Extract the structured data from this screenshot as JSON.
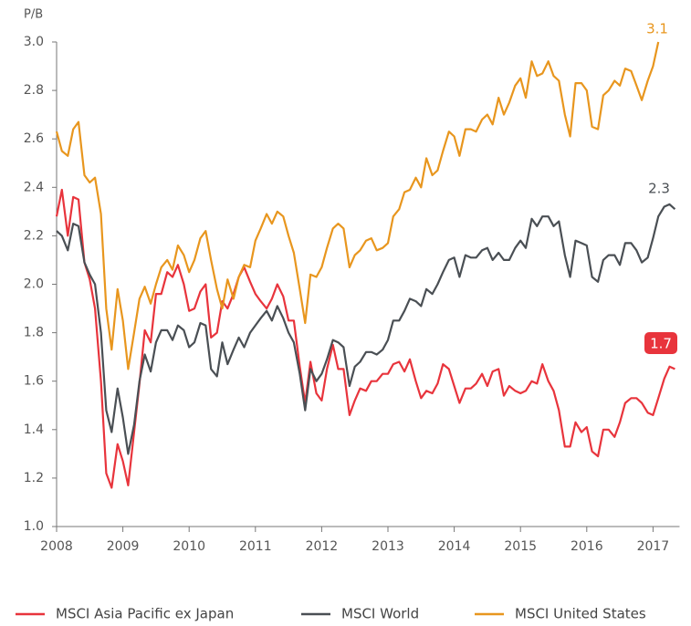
{
  "chart_data": {
    "type": "line",
    "y_label": "P/B",
    "x": [
      2008.0,
      2008.08,
      2008.17,
      2008.25,
      2008.33,
      2008.42,
      2008.5,
      2008.58,
      2008.67,
      2008.75,
      2008.83,
      2008.92,
      2009.0,
      2009.08,
      2009.17,
      2009.25,
      2009.33,
      2009.42,
      2009.5,
      2009.58,
      2009.67,
      2009.75,
      2009.83,
      2009.92,
      2010.0,
      2010.08,
      2010.17,
      2010.25,
      2010.33,
      2010.42,
      2010.5,
      2010.58,
      2010.67,
      2010.75,
      2010.83,
      2010.92,
      2011.0,
      2011.08,
      2011.17,
      2011.25,
      2011.33,
      2011.42,
      2011.5,
      2011.58,
      2011.67,
      2011.75,
      2011.83,
      2011.92,
      2012.0,
      2012.08,
      2012.17,
      2012.25,
      2012.33,
      2012.42,
      2012.5,
      2012.58,
      2012.67,
      2012.75,
      2012.83,
      2012.92,
      2013.0,
      2013.08,
      2013.17,
      2013.25,
      2013.33,
      2013.42,
      2013.5,
      2013.58,
      2013.67,
      2013.75,
      2013.83,
      2013.92,
      2014.0,
      2014.08,
      2014.17,
      2014.25,
      2014.33,
      2014.42,
      2014.5,
      2014.58,
      2014.67,
      2014.75,
      2014.83,
      2014.92,
      2015.0,
      2015.08,
      2015.17,
      2015.25,
      2015.33,
      2015.42,
      2015.5,
      2015.58,
      2015.67,
      2015.75,
      2015.83,
      2015.92,
      2016.0,
      2016.08,
      2016.17,
      2016.25,
      2016.33,
      2016.42,
      2016.5,
      2016.58,
      2016.67,
      2016.75,
      2016.83,
      2016.92,
      2017.0,
      2017.08,
      2017.17,
      2017.25,
      2017.33
    ],
    "series": [
      {
        "name": "MSCI Asia Pacific ex Japan",
        "color": "#e8343c",
        "values": [
          2.28,
          2.39,
          2.2,
          2.36,
          2.35,
          2.09,
          2.02,
          1.9,
          1.6,
          1.22,
          1.16,
          1.34,
          1.27,
          1.17,
          1.39,
          1.59,
          1.81,
          1.76,
          1.96,
          1.96,
          2.05,
          2.03,
          2.08,
          2.0,
          1.89,
          1.9,
          1.97,
          2.0,
          1.78,
          1.8,
          1.93,
          1.9,
          1.96,
          2.03,
          2.07,
          2.01,
          1.96,
          1.93,
          1.9,
          1.94,
          2.0,
          1.95,
          1.85,
          1.85,
          1.66,
          1.51,
          1.68,
          1.55,
          1.52,
          1.65,
          1.75,
          1.65,
          1.65,
          1.46,
          1.52,
          1.57,
          1.56,
          1.6,
          1.6,
          1.63,
          1.63,
          1.67,
          1.68,
          1.64,
          1.69,
          1.6,
          1.53,
          1.56,
          1.55,
          1.59,
          1.67,
          1.65,
          1.58,
          1.51,
          1.57,
          1.57,
          1.59,
          1.63,
          1.58,
          1.64,
          1.65,
          1.54,
          1.58,
          1.56,
          1.55,
          1.56,
          1.6,
          1.59,
          1.67,
          1.6,
          1.56,
          1.48,
          1.33,
          1.33,
          1.43,
          1.39,
          1.41,
          1.31,
          1.29,
          1.4,
          1.4,
          1.37,
          1.43,
          1.51,
          1.53,
          1.53,
          1.51,
          1.47,
          1.46,
          1.53,
          1.61,
          1.66,
          1.65
        ]
      },
      {
        "name": "MSCI World",
        "color": "#4a4f54",
        "values": [
          2.22,
          2.2,
          2.14,
          2.25,
          2.24,
          2.09,
          2.04,
          2.0,
          1.8,
          1.48,
          1.39,
          1.57,
          1.45,
          1.3,
          1.42,
          1.6,
          1.71,
          1.64,
          1.76,
          1.81,
          1.81,
          1.77,
          1.83,
          1.81,
          1.74,
          1.76,
          1.84,
          1.83,
          1.65,
          1.62,
          1.76,
          1.67,
          1.73,
          1.78,
          1.74,
          1.8,
          1.83,
          1.86,
          1.89,
          1.85,
          1.91,
          1.86,
          1.8,
          1.76,
          1.63,
          1.48,
          1.65,
          1.6,
          1.63,
          1.69,
          1.77,
          1.76,
          1.74,
          1.58,
          1.66,
          1.68,
          1.72,
          1.72,
          1.71,
          1.73,
          1.77,
          1.85,
          1.85,
          1.89,
          1.94,
          1.93,
          1.91,
          1.98,
          1.96,
          2.0,
          2.05,
          2.1,
          2.11,
          2.03,
          2.12,
          2.11,
          2.11,
          2.14,
          2.15,
          2.1,
          2.13,
          2.1,
          2.1,
          2.15,
          2.18,
          2.15,
          2.27,
          2.24,
          2.28,
          2.28,
          2.24,
          2.26,
          2.12,
          2.03,
          2.18,
          2.17,
          2.16,
          2.03,
          2.01,
          2.1,
          2.12,
          2.12,
          2.08,
          2.17,
          2.17,
          2.14,
          2.09,
          2.11,
          2.19,
          2.28,
          2.32,
          2.33,
          2.31
        ]
      },
      {
        "name": "MSCI United States",
        "color": "#e8961e",
        "values": [
          2.63,
          2.55,
          2.53,
          2.64,
          2.67,
          2.45,
          2.42,
          2.44,
          2.29,
          1.9,
          1.73,
          1.98,
          1.85,
          1.65,
          1.8,
          1.94,
          1.99,
          1.92,
          2.0,
          2.07,
          2.1,
          2.06,
          2.16,
          2.12,
          2.05,
          2.1,
          2.19,
          2.22,
          2.1,
          1.98,
          1.9,
          2.02,
          1.94,
          2.03,
          2.08,
          2.07,
          2.18,
          2.23,
          2.29,
          2.25,
          2.3,
          2.28,
          2.2,
          2.13,
          1.98,
          1.84,
          2.04,
          2.03,
          2.07,
          2.15,
          2.23,
          2.25,
          2.23,
          2.07,
          2.12,
          2.14,
          2.18,
          2.19,
          2.14,
          2.15,
          2.17,
          2.28,
          2.31,
          2.38,
          2.39,
          2.44,
          2.4,
          2.52,
          2.45,
          2.47,
          2.55,
          2.63,
          2.61,
          2.53,
          2.64,
          2.64,
          2.63,
          2.68,
          2.7,
          2.66,
          2.77,
          2.7,
          2.75,
          2.82,
          2.85,
          2.77,
          2.92,
          2.86,
          2.87,
          2.92,
          2.86,
          2.84,
          2.7,
          2.61,
          2.83,
          2.83,
          2.8,
          2.65,
          2.64,
          2.78,
          2.8,
          2.84,
          2.82,
          2.89,
          2.88,
          2.82,
          2.76,
          2.84,
          2.9,
          3.0,
          null,
          null,
          null
        ]
      }
    ],
    "annotations": [
      {
        "text": "3.1",
        "color": "#e8961e"
      },
      {
        "text": "2.3",
        "color": "#4a4f54"
      },
      {
        "text": "1.7",
        "color": "#e8343c"
      }
    ],
    "xlim": [
      2008,
      2017.4
    ],
    "xticks": [
      2008,
      2009,
      2010,
      2011,
      2012,
      2013,
      2014,
      2015,
      2016,
      2017
    ],
    "ylim": [
      1,
      3
    ],
    "yticks": [
      {
        "value": 1,
        "label": "1.0"
      },
      {
        "value": 1.2,
        "label": "1.2"
      },
      {
        "value": 1.4,
        "label": "1.4"
      },
      {
        "value": 1.6,
        "label": "1.6"
      },
      {
        "value": 1.8,
        "label": "1.8"
      },
      {
        "value": 2,
        "label": "2.0"
      },
      {
        "value": 2.2,
        "label": "2.2"
      },
      {
        "value": 2.4,
        "label": "2.4"
      },
      {
        "value": 2.6,
        "label": "2.6"
      },
      {
        "value": 2.8,
        "label": "2.8"
      },
      {
        "value": 3,
        "label": "3.0"
      }
    ],
    "legend": "bottom"
  }
}
